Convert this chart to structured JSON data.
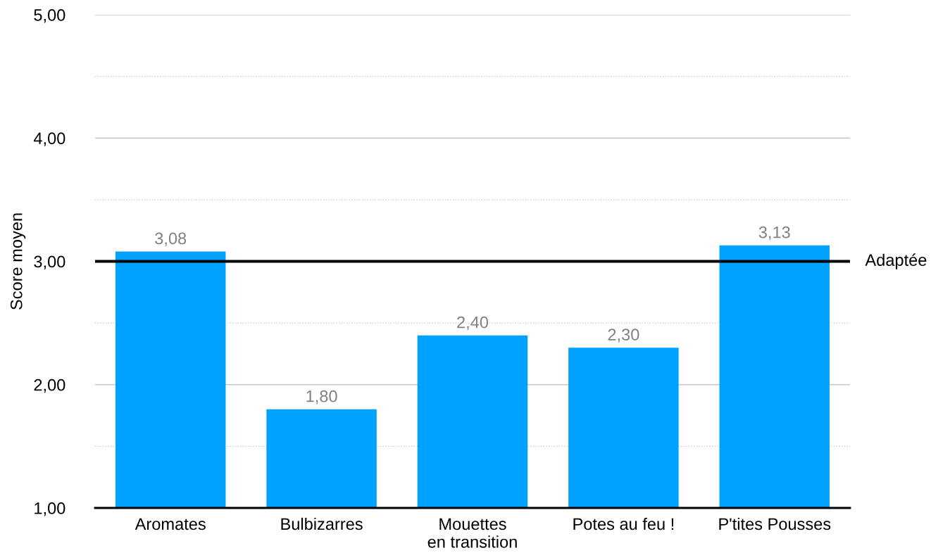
{
  "chart_data": {
    "type": "bar",
    "ylabel": "Score moyen",
    "categories": [
      "Aromates",
      "Bulbizarres",
      "Mouettes\nen transition",
      "Potes au feu !",
      "P'tites Pousses"
    ],
    "values": [
      3.08,
      1.8,
      2.4,
      2.3,
      3.13
    ],
    "value_labels": [
      "3,08",
      "1,80",
      "2,40",
      "2,30",
      "3,13"
    ],
    "color": "#00a2ff",
    "ylim": [
      1,
      5
    ],
    "yticks": [
      {
        "value": 1,
        "label": "1,00"
      },
      {
        "value": 1.5,
        "label": null
      },
      {
        "value": 2,
        "label": "2,00"
      },
      {
        "value": 2.5,
        "label": null
      },
      {
        "value": 3,
        "label": "3,00"
      },
      {
        "value": 3.5,
        "label": null
      },
      {
        "value": 4,
        "label": "4,00"
      },
      {
        "value": 4.5,
        "label": null
      },
      {
        "value": 5,
        "label": "5,00"
      }
    ],
    "grid": "y",
    "ref_lines": [
      {
        "axis": "y",
        "value": 3,
        "label": "Adaptée",
        "color": "#000000",
        "line_style": "solid"
      }
    ]
  }
}
